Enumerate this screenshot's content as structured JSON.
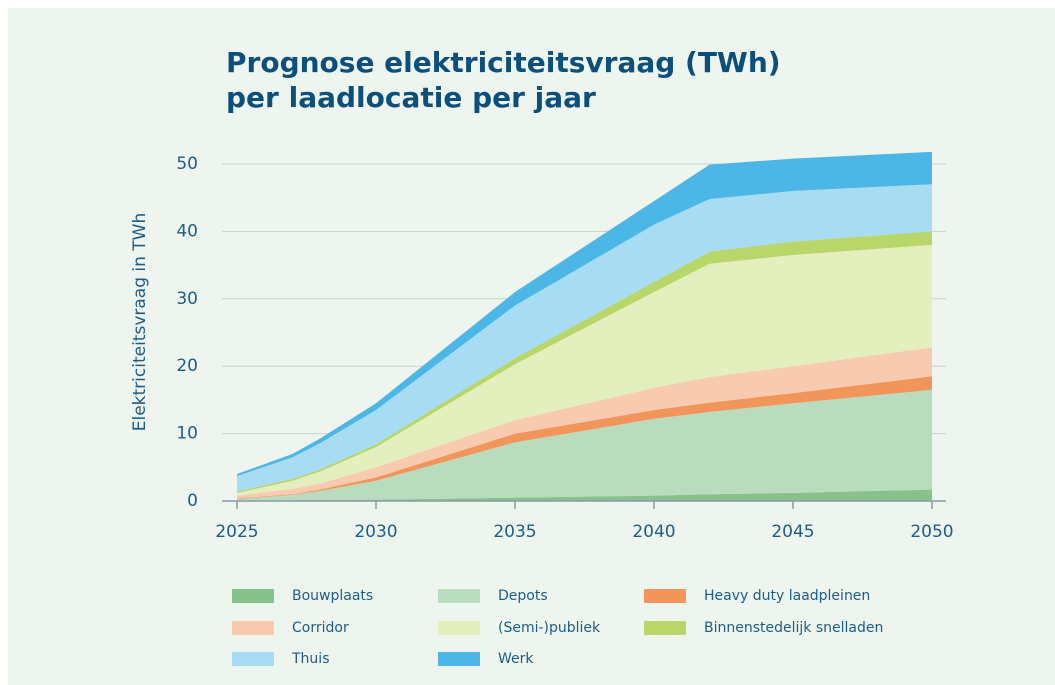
{
  "chart_data": {
    "type": "stacked-area",
    "title": [
      "Prognose elektriciteitsvraag (TWh)",
      "per laadlocatie per jaar"
    ],
    "y_label": "Elektriciteitsvraag in TWh",
    "x": [
      2025,
      2027,
      2028,
      2030,
      2035,
      2040,
      2042,
      2045,
      2050
    ],
    "series": [
      {
        "name": "Bouwplaats",
        "color": "#86c28a",
        "values": [
          0.1,
          0.1,
          0.15,
          0.2,
          0.5,
          0.8,
          1.0,
          1.2,
          1.7
        ]
      },
      {
        "name": "Depots",
        "color": "#b9dcbe",
        "values": [
          0.2,
          0.8,
          1.35,
          2.8,
          8.2,
          11.4,
          12.2,
          13.3,
          14.8
        ]
      },
      {
        "name": "Heavy duty laadpleinen",
        "color": "#f2955a",
        "values": [
          0.1,
          0.1,
          0.2,
          0.5,
          1.3,
          1.3,
          1.4,
          1.5,
          2.0
        ]
      },
      {
        "name": "Corridor",
        "color": "#f8cbb0",
        "values": [
          0.4,
          0.8,
          0.9,
          1.5,
          2.0,
          3.3,
          3.8,
          4.0,
          4.3
        ]
      },
      {
        "name": "(Semi-)publiek",
        "color": "#e3efbd",
        "values": [
          0.4,
          1.2,
          1.8,
          3.0,
          8.3,
          14.2,
          16.8,
          16.5,
          15.2
        ]
      },
      {
        "name": "Binnenstedelijk snelladen",
        "color": "#b8d66a",
        "values": [
          0.2,
          0.3,
          0.3,
          0.4,
          0.9,
          1.5,
          1.8,
          2.0,
          2.0
        ]
      },
      {
        "name": "Thuis",
        "color": "#a7dcf3",
        "values": [
          2.3,
          3.2,
          3.9,
          5.1,
          7.8,
          8.5,
          7.8,
          7.5,
          7.0
        ]
      },
      {
        "name": "Werk",
        "color": "#4cb6e6",
        "values": [
          0.3,
          0.5,
          0.7,
          1.0,
          2.0,
          3.5,
          5.1,
          4.8,
          4.8
        ]
      }
    ],
    "xlim": [
      2025,
      2050
    ],
    "xticks": [
      2025,
      2030,
      2035,
      2040,
      2045,
      2050
    ],
    "ylim": [
      0,
      55
    ],
    "yticks": [
      0,
      10,
      20,
      30,
      40,
      50
    ],
    "grid": true
  }
}
